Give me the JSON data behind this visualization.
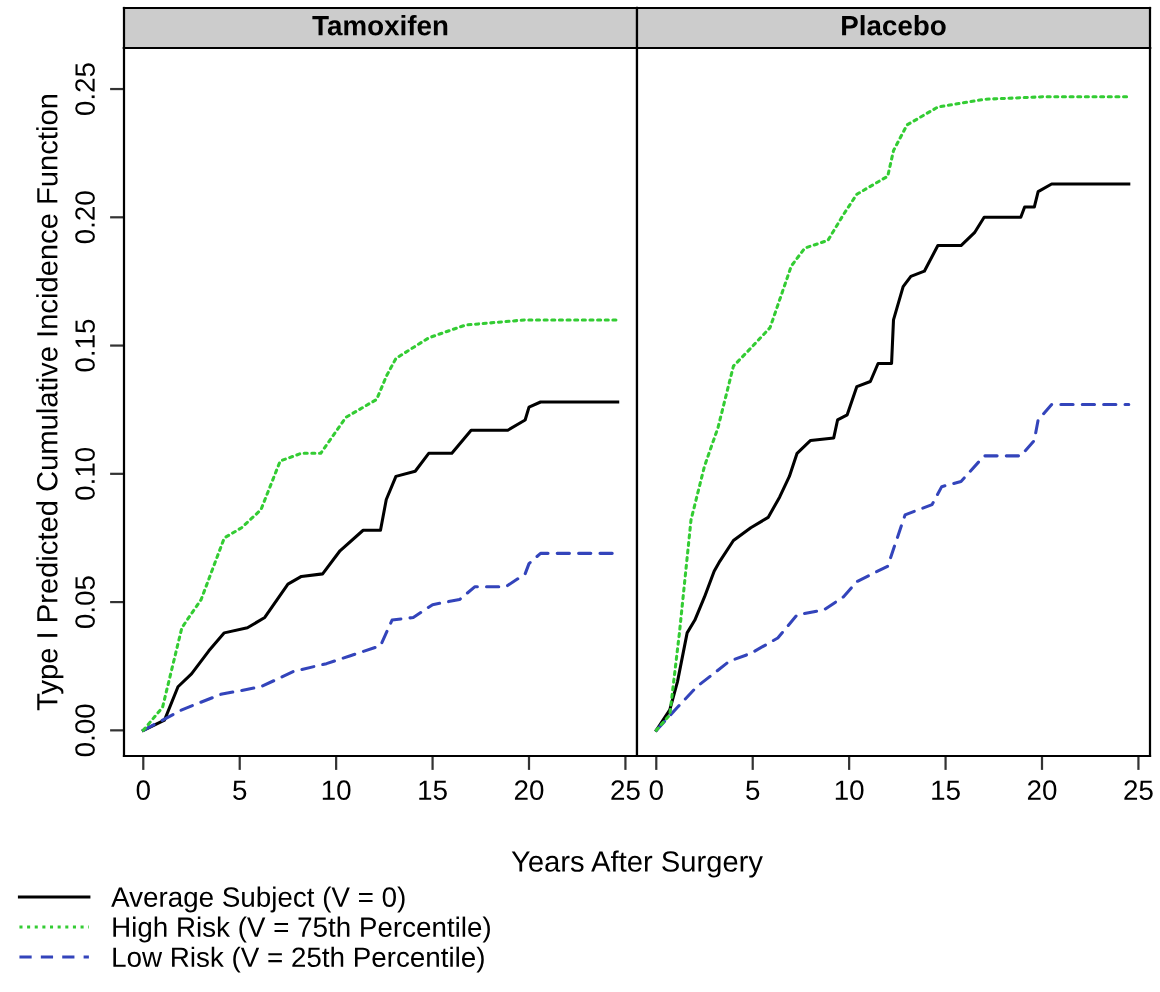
{
  "chart_data": [
    {
      "type": "line",
      "title": "Tamoxifen",
      "xlabel": "Years After Surgery",
      "ylabel": "Type I Predicted Cumulative Incidence Function",
      "xlim": [
        -1,
        25.6
      ],
      "ylim": [
        -0.01,
        0.266
      ],
      "xticks": [
        0,
        5,
        10,
        15,
        20,
        25
      ],
      "yticks": [
        {
          "value": 0,
          "label": "0.00"
        },
        0.05,
        {
          "value": 0.1,
          "label": "0.10"
        },
        0.15,
        {
          "value": 0.2,
          "label": "0.20"
        },
        0.25
      ],
      "legend": "bottom left",
      "tick_labels": true,
      "series": [
        {
          "name": "Average Subject (V = 0)",
          "color": "#000000",
          "line_style": "solid",
          "x": [
            0,
            1.1,
            1.8,
            2.5,
            3.4,
            4.2,
            5.4,
            6.3,
            7.5,
            8.2,
            9.3,
            10.2,
            11.4,
            12.3,
            12.6,
            13.1,
            14.1,
            14.8,
            16.0,
            17.0,
            18.9,
            19.8,
            20.0,
            20.6,
            24.6
          ],
          "values": [
            0,
            0.004,
            0.017,
            0.022,
            0.031,
            0.038,
            0.04,
            0.044,
            0.057,
            0.06,
            0.061,
            0.07,
            0.078,
            0.078,
            0.09,
            0.099,
            0.101,
            0.108,
            0.108,
            0.117,
            0.117,
            0.121,
            0.126,
            0.128,
            0.128
          ]
        },
        {
          "name": "High Risk (V = 75th Percentile)",
          "color": "#33cc33",
          "line_style": "dotted",
          "x": [
            0,
            1.0,
            2.0,
            3.0,
            4.2,
            5.1,
            6.1,
            7.1,
            8.2,
            9.2,
            10.5,
            12.1,
            12.6,
            13.1,
            14.8,
            16.7,
            19.8,
            21.2,
            24.6
          ],
          "values": [
            0,
            0.009,
            0.04,
            0.051,
            0.075,
            0.079,
            0.086,
            0.105,
            0.108,
            0.108,
            0.122,
            0.129,
            0.138,
            0.145,
            0.153,
            0.158,
            0.16,
            0.16,
            0.16
          ]
        },
        {
          "name": "Low Risk (V = 25th Percentile)",
          "color": "#3344bb",
          "line_style": "dashed",
          "x": [
            0,
            2.0,
            4.0,
            6.1,
            7.8,
            9.5,
            10.7,
            12.3,
            12.9,
            14.0,
            15.0,
            16.4,
            17.2,
            18.8,
            19.8,
            20.0,
            20.6,
            24.6
          ],
          "values": [
            0,
            0.008,
            0.014,
            0.017,
            0.023,
            0.026,
            0.029,
            0.033,
            0.043,
            0.044,
            0.049,
            0.051,
            0.056,
            0.056,
            0.061,
            0.065,
            0.069,
            0.069
          ]
        }
      ]
    },
    {
      "type": "line",
      "title": "Placebo",
      "xlim": [
        -1,
        25.6
      ],
      "ylim": [
        -0.01,
        0.266
      ],
      "xticks": [
        0,
        5,
        10,
        15,
        20,
        25
      ],
      "tick_labels": "x",
      "series": [
        {
          "color": "#000000",
          "line_style": "solid",
          "x": [
            0,
            0.7,
            1.1,
            1.6,
            2.0,
            2.5,
            3.0,
            3.3,
            4.0,
            4.9,
            5.8,
            6.4,
            6.9,
            7.3,
            8.0,
            9.2,
            9.4,
            9.9,
            10.4,
            11.1,
            11.5,
            12.2,
            12.3,
            12.8,
            13.2,
            13.9,
            14.6,
            15.8,
            16.5,
            17.0,
            18.9,
            19.1,
            19.6,
            19.8,
            20.5,
            24.5
          ],
          "values": [
            0,
            0.008,
            0.019,
            0.038,
            0.043,
            0.052,
            0.062,
            0.066,
            0.074,
            0.079,
            0.083,
            0.091,
            0.099,
            0.108,
            0.113,
            0.114,
            0.121,
            0.123,
            0.134,
            0.136,
            0.143,
            0.143,
            0.16,
            0.173,
            0.177,
            0.179,
            0.189,
            0.189,
            0.194,
            0.2,
            0.2,
            0.204,
            0.204,
            0.21,
            0.213,
            0.213
          ]
        },
        {
          "color": "#33cc33",
          "line_style": "dotted",
          "x": [
            0,
            0.7,
            1.2,
            1.8,
            2.5,
            3.2,
            4.0,
            4.9,
            5.9,
            7.0,
            7.7,
            8.9,
            9.7,
            10.4,
            12.0,
            12.3,
            13.0,
            14.6,
            17.0,
            20.1,
            24.5
          ],
          "values": [
            0,
            0.006,
            0.038,
            0.082,
            0.103,
            0.118,
            0.142,
            0.149,
            0.157,
            0.181,
            0.188,
            0.191,
            0.201,
            0.209,
            0.216,
            0.226,
            0.236,
            0.243,
            0.246,
            0.247,
            0.247
          ]
        },
        {
          "color": "#3344bb",
          "line_style": "dashed",
          "x": [
            0,
            1.1,
            2.1,
            3.8,
            4.9,
            6.3,
            7.3,
            8.7,
            9.7,
            10.4,
            12.0,
            12.9,
            14.3,
            14.8,
            15.8,
            17.0,
            18.9,
            19.6,
            19.8,
            20.5,
            24.5
          ],
          "values": [
            0,
            0.009,
            0.017,
            0.027,
            0.03,
            0.036,
            0.045,
            0.047,
            0.052,
            0.058,
            0.064,
            0.084,
            0.088,
            0.095,
            0.097,
            0.107,
            0.107,
            0.113,
            0.121,
            0.127,
            0.127
          ]
        }
      ]
    }
  ]
}
